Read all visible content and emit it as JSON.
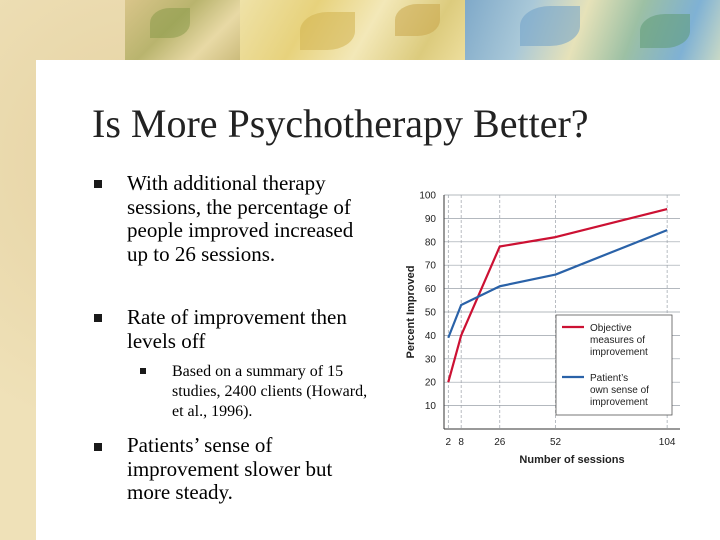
{
  "slide": {
    "title": "Is More Psychotherapy Better?",
    "bullets": [
      "With additional therapy sessions, the percentage of people improved increased up to 26 sessions.",
      "Rate of improvement then levels off"
    ],
    "sub_bullets": [
      "Based on a summary of 15 studies, 2400 clients (Howard, et al., 1996)."
    ],
    "bullets_after": [
      "Patients’ sense of improvement slower but more steady."
    ]
  },
  "colors": {
    "objective": "#cc1133",
    "patient": "#2a62a8",
    "grid": "#9aa0a8",
    "axis_text": "#222222"
  },
  "chart_data": {
    "type": "line",
    "title": "",
    "xlabel": "Number of sessions",
    "ylabel": "Percent Improved",
    "x_ticks": [
      2,
      8,
      26,
      52,
      104
    ],
    "y_ticks": [
      10,
      20,
      30,
      40,
      50,
      60,
      70,
      80,
      90,
      100
    ],
    "xlim": [
      0,
      110
    ],
    "ylim": [
      0,
      100
    ],
    "grid": true,
    "legend_position": "bottom-right",
    "series": [
      {
        "name": "Objective measures of improvement",
        "x": [
          2,
          8,
          26,
          52,
          104
        ],
        "y": [
          20,
          40,
          78,
          82,
          94
        ]
      },
      {
        "name": "Patient’s own sense of improvement",
        "x": [
          2,
          8,
          26,
          52,
          104
        ],
        "y": [
          39,
          53,
          61,
          66,
          85
        ]
      }
    ]
  }
}
